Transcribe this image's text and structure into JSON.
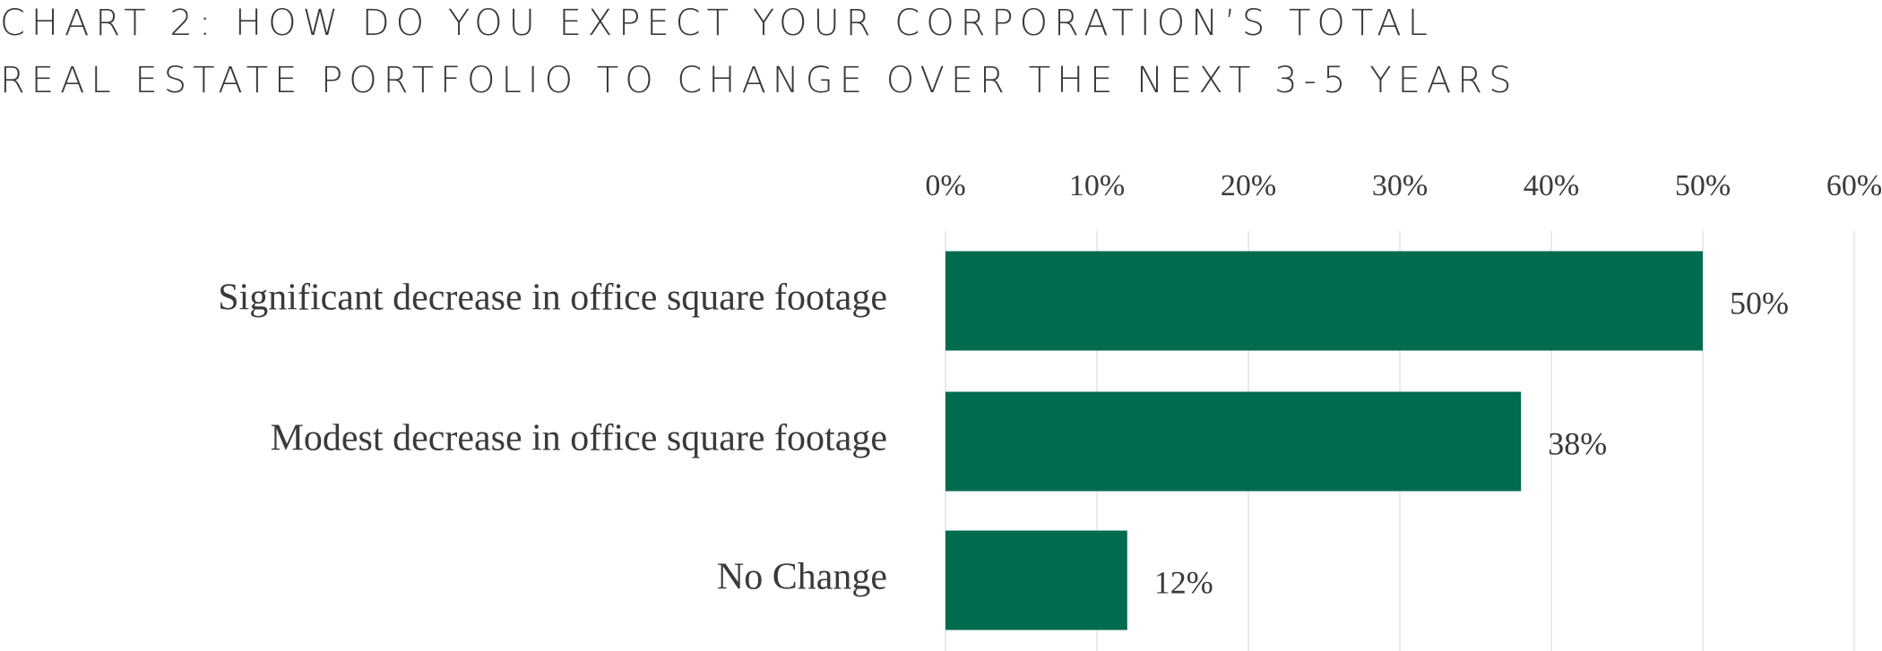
{
  "chart_data": {
    "type": "hbar",
    "title": "CHART 2: HOW DO YOU EXPECT YOUR CORPORATION’S TOTAL REAL ESTATE PORTFOLIO TO CHANGE OVER THE NEXT 3-5 YEARS",
    "categories": [
      "Significant decrease in office square footage",
      "Modest decrease in office square footage",
      "No Change"
    ],
    "values": [
      50,
      38,
      12
    ],
    "value_labels": [
      "50%",
      "38%",
      "12%"
    ],
    "color": "#006b4f",
    "xlim": [
      0,
      60
    ],
    "xticks": [
      {
        "value": 0,
        "label": "0%"
      },
      {
        "value": 10,
        "label": "10%"
      },
      {
        "value": 20,
        "label": "20%"
      },
      {
        "value": 30,
        "label": "30%"
      },
      {
        "value": 40,
        "label": "40%"
      },
      {
        "value": 50,
        "label": "50%"
      },
      {
        "value": 60,
        "label": "60%"
      }
    ],
    "grid": true
  }
}
